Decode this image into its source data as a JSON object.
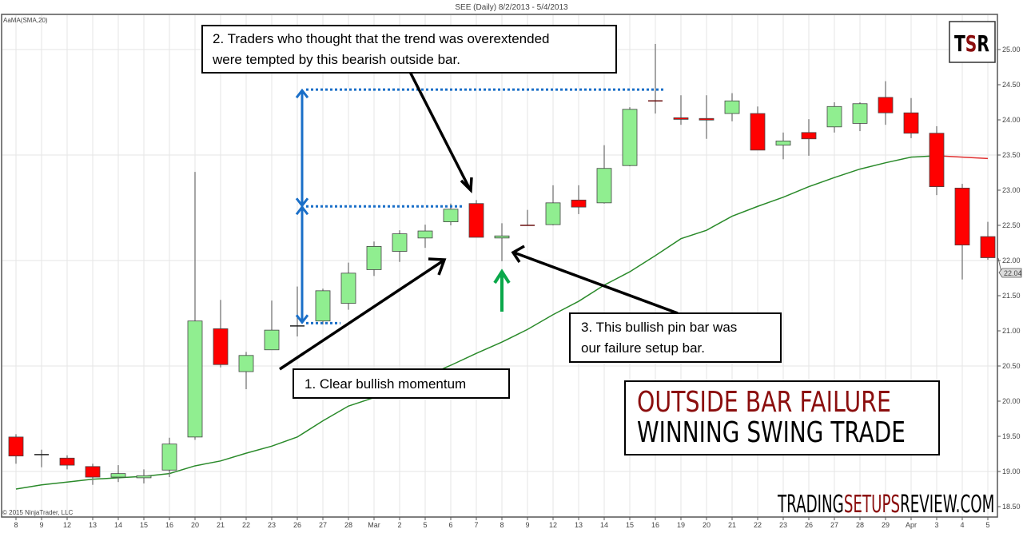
{
  "chart_data": {
    "type": "candlestick",
    "title": "SEE (Daily)  8/2/2013 - 5/4/2013",
    "indicator_label": "AaMA(SMA,20)",
    "copyright": "© 2015 NinjaTrader, LLC",
    "last_price": "22.04",
    "ylim": [
      18.5,
      25.0
    ],
    "y_ticks": [
      "25.00",
      "24.50",
      "24.00",
      "23.50",
      "23.00",
      "22.50",
      "22.00",
      "21.50",
      "21.00",
      "20.50",
      "20.00",
      "19.50",
      "19.00",
      "18.50"
    ],
    "grid": true,
    "categories": [
      "8",
      "9",
      "12",
      "13",
      "14",
      "15",
      "16",
      "20",
      "21",
      "22",
      "23",
      "26",
      "27",
      "28",
      "Mar",
      "2",
      "5",
      "6",
      "7",
      "8",
      "9",
      "12",
      "13",
      "14",
      "15",
      "16",
      "19",
      "20",
      "21",
      "22",
      "23",
      "26",
      "27",
      "28",
      "29",
      "Apr",
      "3",
      "4",
      "5"
    ],
    "ohlc": [
      [
        19.49,
        19.53,
        19.11,
        19.22
      ],
      [
        19.24,
        19.31,
        19.06,
        19.24
      ],
      [
        19.19,
        19.23,
        19.03,
        19.09
      ],
      [
        19.07,
        19.11,
        18.81,
        18.92
      ],
      [
        18.92,
        19.09,
        18.85,
        18.97
      ],
      [
        18.91,
        19.03,
        18.83,
        18.94
      ],
      [
        19.02,
        19.48,
        18.92,
        19.39
      ],
      [
        19.49,
        23.26,
        19.45,
        21.14
      ],
      [
        21.03,
        21.44,
        20.48,
        20.52
      ],
      [
        20.42,
        20.7,
        20.17,
        20.65
      ],
      [
        20.73,
        21.43,
        20.73,
        21.01
      ],
      [
        21.07,
        21.63,
        20.92,
        21.07
      ],
      [
        21.14,
        21.6,
        21.09,
        21.57
      ],
      [
        21.39,
        21.97,
        21.3,
        21.82
      ],
      [
        21.87,
        22.27,
        21.78,
        22.2
      ],
      [
        22.13,
        22.43,
        21.98,
        22.38
      ],
      [
        22.32,
        22.51,
        22.18,
        22.42
      ],
      [
        22.55,
        22.81,
        22.5,
        22.73
      ],
      [
        22.81,
        22.86,
        22.33,
        22.33
      ],
      [
        22.32,
        22.53,
        21.99,
        22.35
      ],
      [
        22.5,
        22.72,
        22.5,
        22.5
      ],
      [
        22.51,
        23.07,
        22.5,
        22.82
      ],
      [
        22.86,
        23.07,
        22.66,
        22.76
      ],
      [
        22.82,
        23.64,
        22.81,
        23.31
      ],
      [
        23.35,
        24.18,
        23.34,
        24.15
      ],
      [
        24.27,
        25.08,
        24.09,
        24.27
      ],
      [
        24.03,
        24.35,
        23.93,
        24.01
      ],
      [
        24.02,
        24.35,
        23.73,
        24.0
      ],
      [
        24.09,
        24.38,
        23.98,
        24.27
      ],
      [
        24.09,
        24.19,
        23.57,
        23.57
      ],
      [
        23.64,
        23.82,
        23.44,
        23.7
      ],
      [
        23.82,
        24.01,
        23.49,
        23.73
      ],
      [
        23.9,
        24.25,
        23.82,
        24.19
      ],
      [
        23.95,
        24.25,
        23.84,
        24.23
      ],
      [
        24.32,
        24.55,
        23.93,
        24.1
      ],
      [
        24.1,
        24.31,
        23.74,
        23.81
      ],
      [
        23.81,
        23.91,
        22.93,
        23.05
      ],
      [
        23.03,
        23.09,
        21.73,
        22.22
      ],
      [
        22.34,
        22.55,
        22.01,
        22.04
      ]
    ],
    "sma20": [
      18.75,
      18.81,
      18.85,
      18.89,
      18.91,
      18.93,
      18.97,
      19.08,
      19.15,
      19.26,
      19.36,
      19.49,
      19.72,
      19.93,
      20.05,
      20.19,
      20.35,
      20.51,
      20.68,
      20.84,
      21.02,
      21.23,
      21.42,
      21.65,
      21.84,
      22.07,
      22.31,
      22.43,
      22.63,
      22.77,
      22.9,
      23.05,
      23.18,
      23.3,
      23.39,
      23.47,
      23.49,
      23.47,
      23.45
    ],
    "sma_rising_color": "#2a8a2a",
    "sma_falling_color": "#e03030",
    "sma_falling_from_index": 36,
    "up_color": "#90EE90",
    "down_color": "#FF0000",
    "annotation_levels": [
      24.43,
      22.77,
      21.11
    ],
    "annotations": {
      "note1": "1. Clear bullish  momentum",
      "note2_line1": "2. Traders who thought that the trend was overextended",
      "note2_line2": "were tempted by this bearish outside bar.",
      "note3_line1": "3. This bullish  pin bar was",
      "note3_line2": "our failure setup bar."
    },
    "headline": {
      "line1": "OUTSIDE BAR FAILURE",
      "line2": "WINNING SWING TRADE",
      "line1_color": "#8b0e0e"
    },
    "logo": {
      "t": "T",
      "s": "S",
      "r": "R",
      "s_color": "#8b0e0e"
    },
    "website": {
      "part1": "TRADING",
      "part2": "SETUPS",
      "part3": "REVIEW.COM",
      "accent": "#8b0e0e"
    }
  }
}
